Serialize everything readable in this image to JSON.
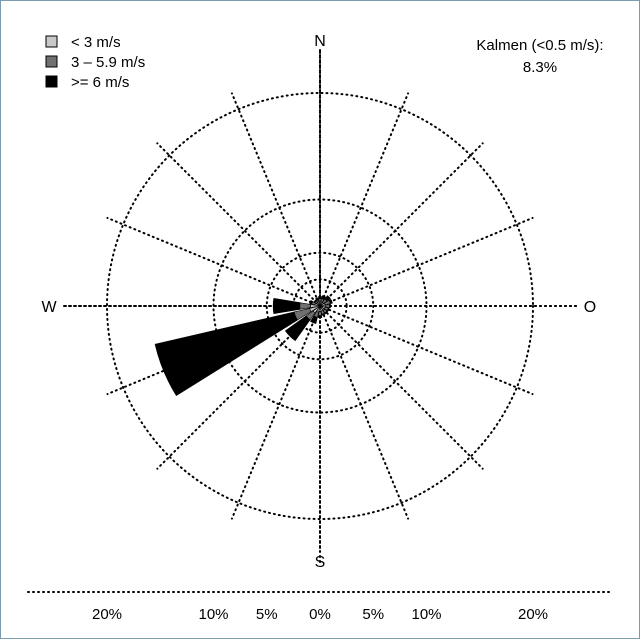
{
  "chart_data": {
    "type": "windrose",
    "directions": [
      "N",
      "NNE",
      "NE",
      "ENE",
      "E",
      "ESE",
      "SE",
      "SSE",
      "S",
      "SSW",
      "SW",
      "WSW",
      "W",
      "WNW",
      "NW",
      "NNW"
    ],
    "compass_labels": {
      "N": "N",
      "E": "O",
      "S": "S",
      "W": "W"
    },
    "radial_unit": "percent",
    "radial_max": 20,
    "rings": [
      2.5,
      5,
      10,
      20
    ],
    "scale_ticks": [
      "20%",
      "10%",
      "5%",
      "0%",
      "5%",
      "10%",
      "20%"
    ],
    "calm_label": "Kalmen (<0.5 m/s):",
    "calm_value": "8.3%",
    "legend_position": "top-left",
    "series": [
      {
        "name": "< 3 m/s",
        "color": "#c8c8c8",
        "values": [
          0.4,
          0.4,
          0.4,
          0.5,
          0.5,
          0.5,
          0.5,
          0.5,
          0.5,
          0.6,
          0.8,
          1.0,
          0.9,
          0.5,
          0.4,
          0.4
        ]
      },
      {
        "name": "3 – 5.9 m/s",
        "color": "#707070",
        "values": [
          0.3,
          0.3,
          0.4,
          0.5,
          0.4,
          0.3,
          0.3,
          0.3,
          0.4,
          0.5,
          0.8,
          1.5,
          1.0,
          0.3,
          0.2,
          0.2
        ]
      },
      {
        "name": ">= 6 m/s",
        "color": "#000000",
        "values": [
          0.2,
          0.3,
          0.4,
          0.2,
          0.1,
          0.1,
          0.1,
          0.1,
          0.2,
          0.6,
          2.4,
          13.4,
          2.5,
          0.2,
          0.1,
          0.2
        ]
      }
    ]
  }
}
